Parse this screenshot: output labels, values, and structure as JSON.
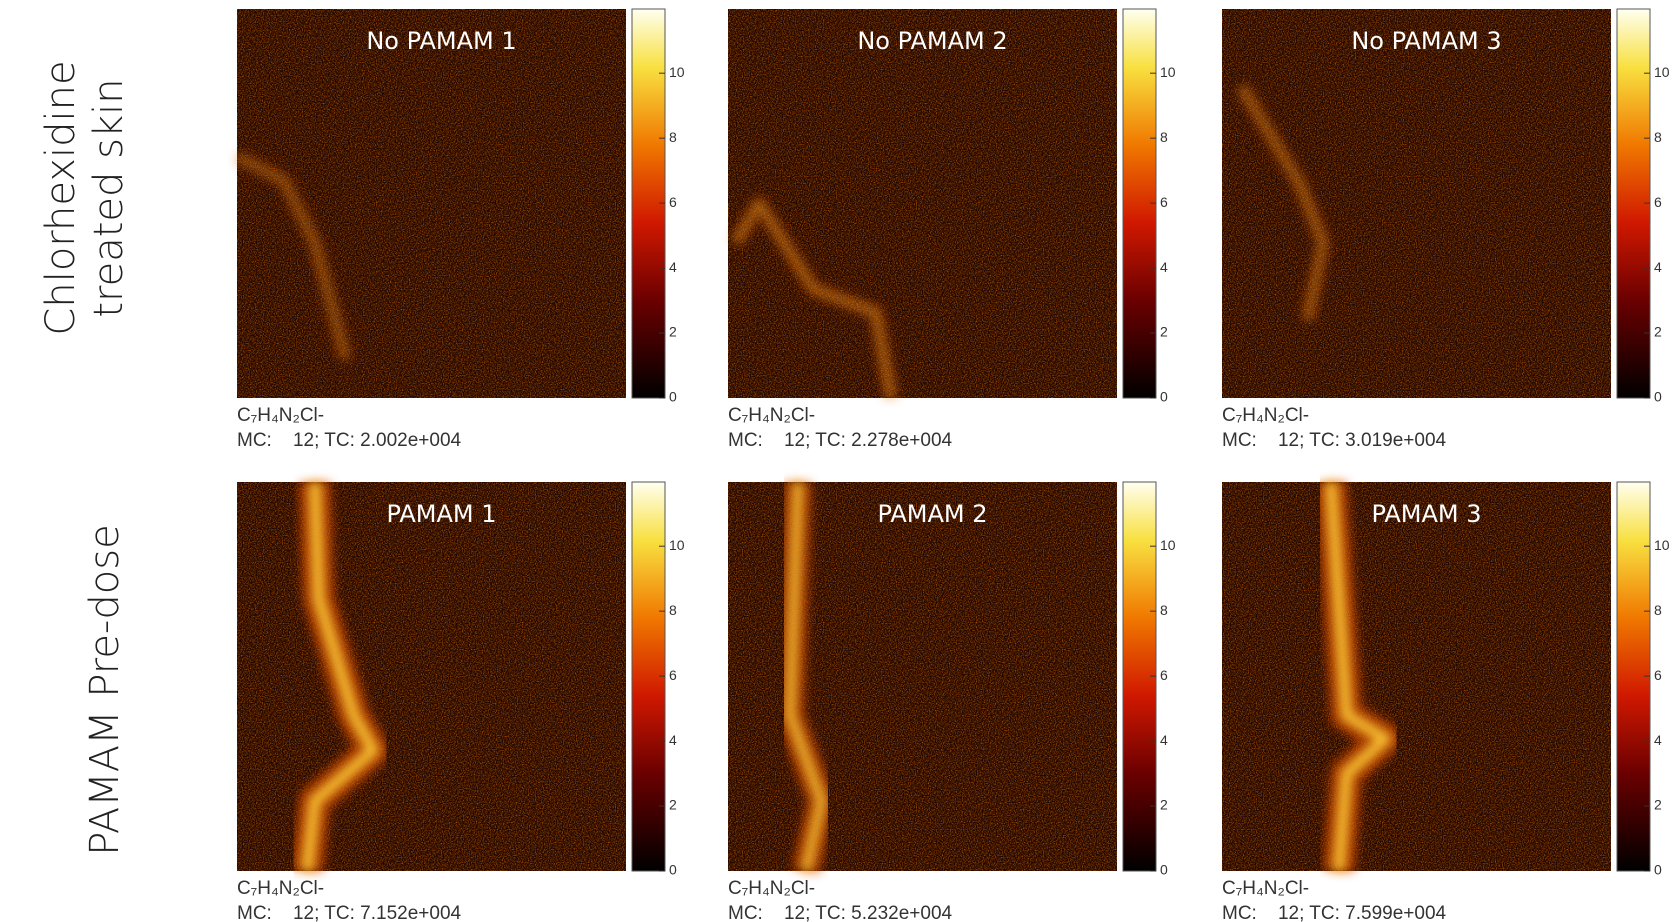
{
  "rows": [
    {
      "label": [
        "Chlorhexidine",
        "treated skin"
      ],
      "panels": [
        {
          "title": "No PAMAM 1",
          "formula": "C₇H₄N₂Cl-",
          "counts": "MC:    12; TC: 2.002e+004"
        },
        {
          "title": "No PAMAM 2",
          "formula": "C₇H₄N₂Cl-",
          "counts": "MC:    12; TC: 2.278e+004"
        },
        {
          "title": "No PAMAM 3",
          "formula": "C₇H₄N₂Cl-",
          "counts": "MC:    12; TC: 3.019e+004"
        }
      ]
    },
    {
      "label": [
        "PAMAM Pre-dose"
      ],
      "panels": [
        {
          "title": "PAMAM 1",
          "formula": "C₇H₄N₂Cl-",
          "counts": "MC:    12; TC: 7.152e+004"
        },
        {
          "title": "PAMAM 2",
          "formula": "C₇H₄N₂Cl-",
          "counts": "MC:    12; TC: 5.232e+004"
        },
        {
          "title": "PAMAM 3",
          "formula": "C₇H₄N₂Cl-",
          "counts": "MC:    12; TC: 7.599e+004"
        }
      ]
    }
  ],
  "colorbar": {
    "ticks": [
      0,
      2,
      4,
      6,
      8,
      10
    ]
  }
}
